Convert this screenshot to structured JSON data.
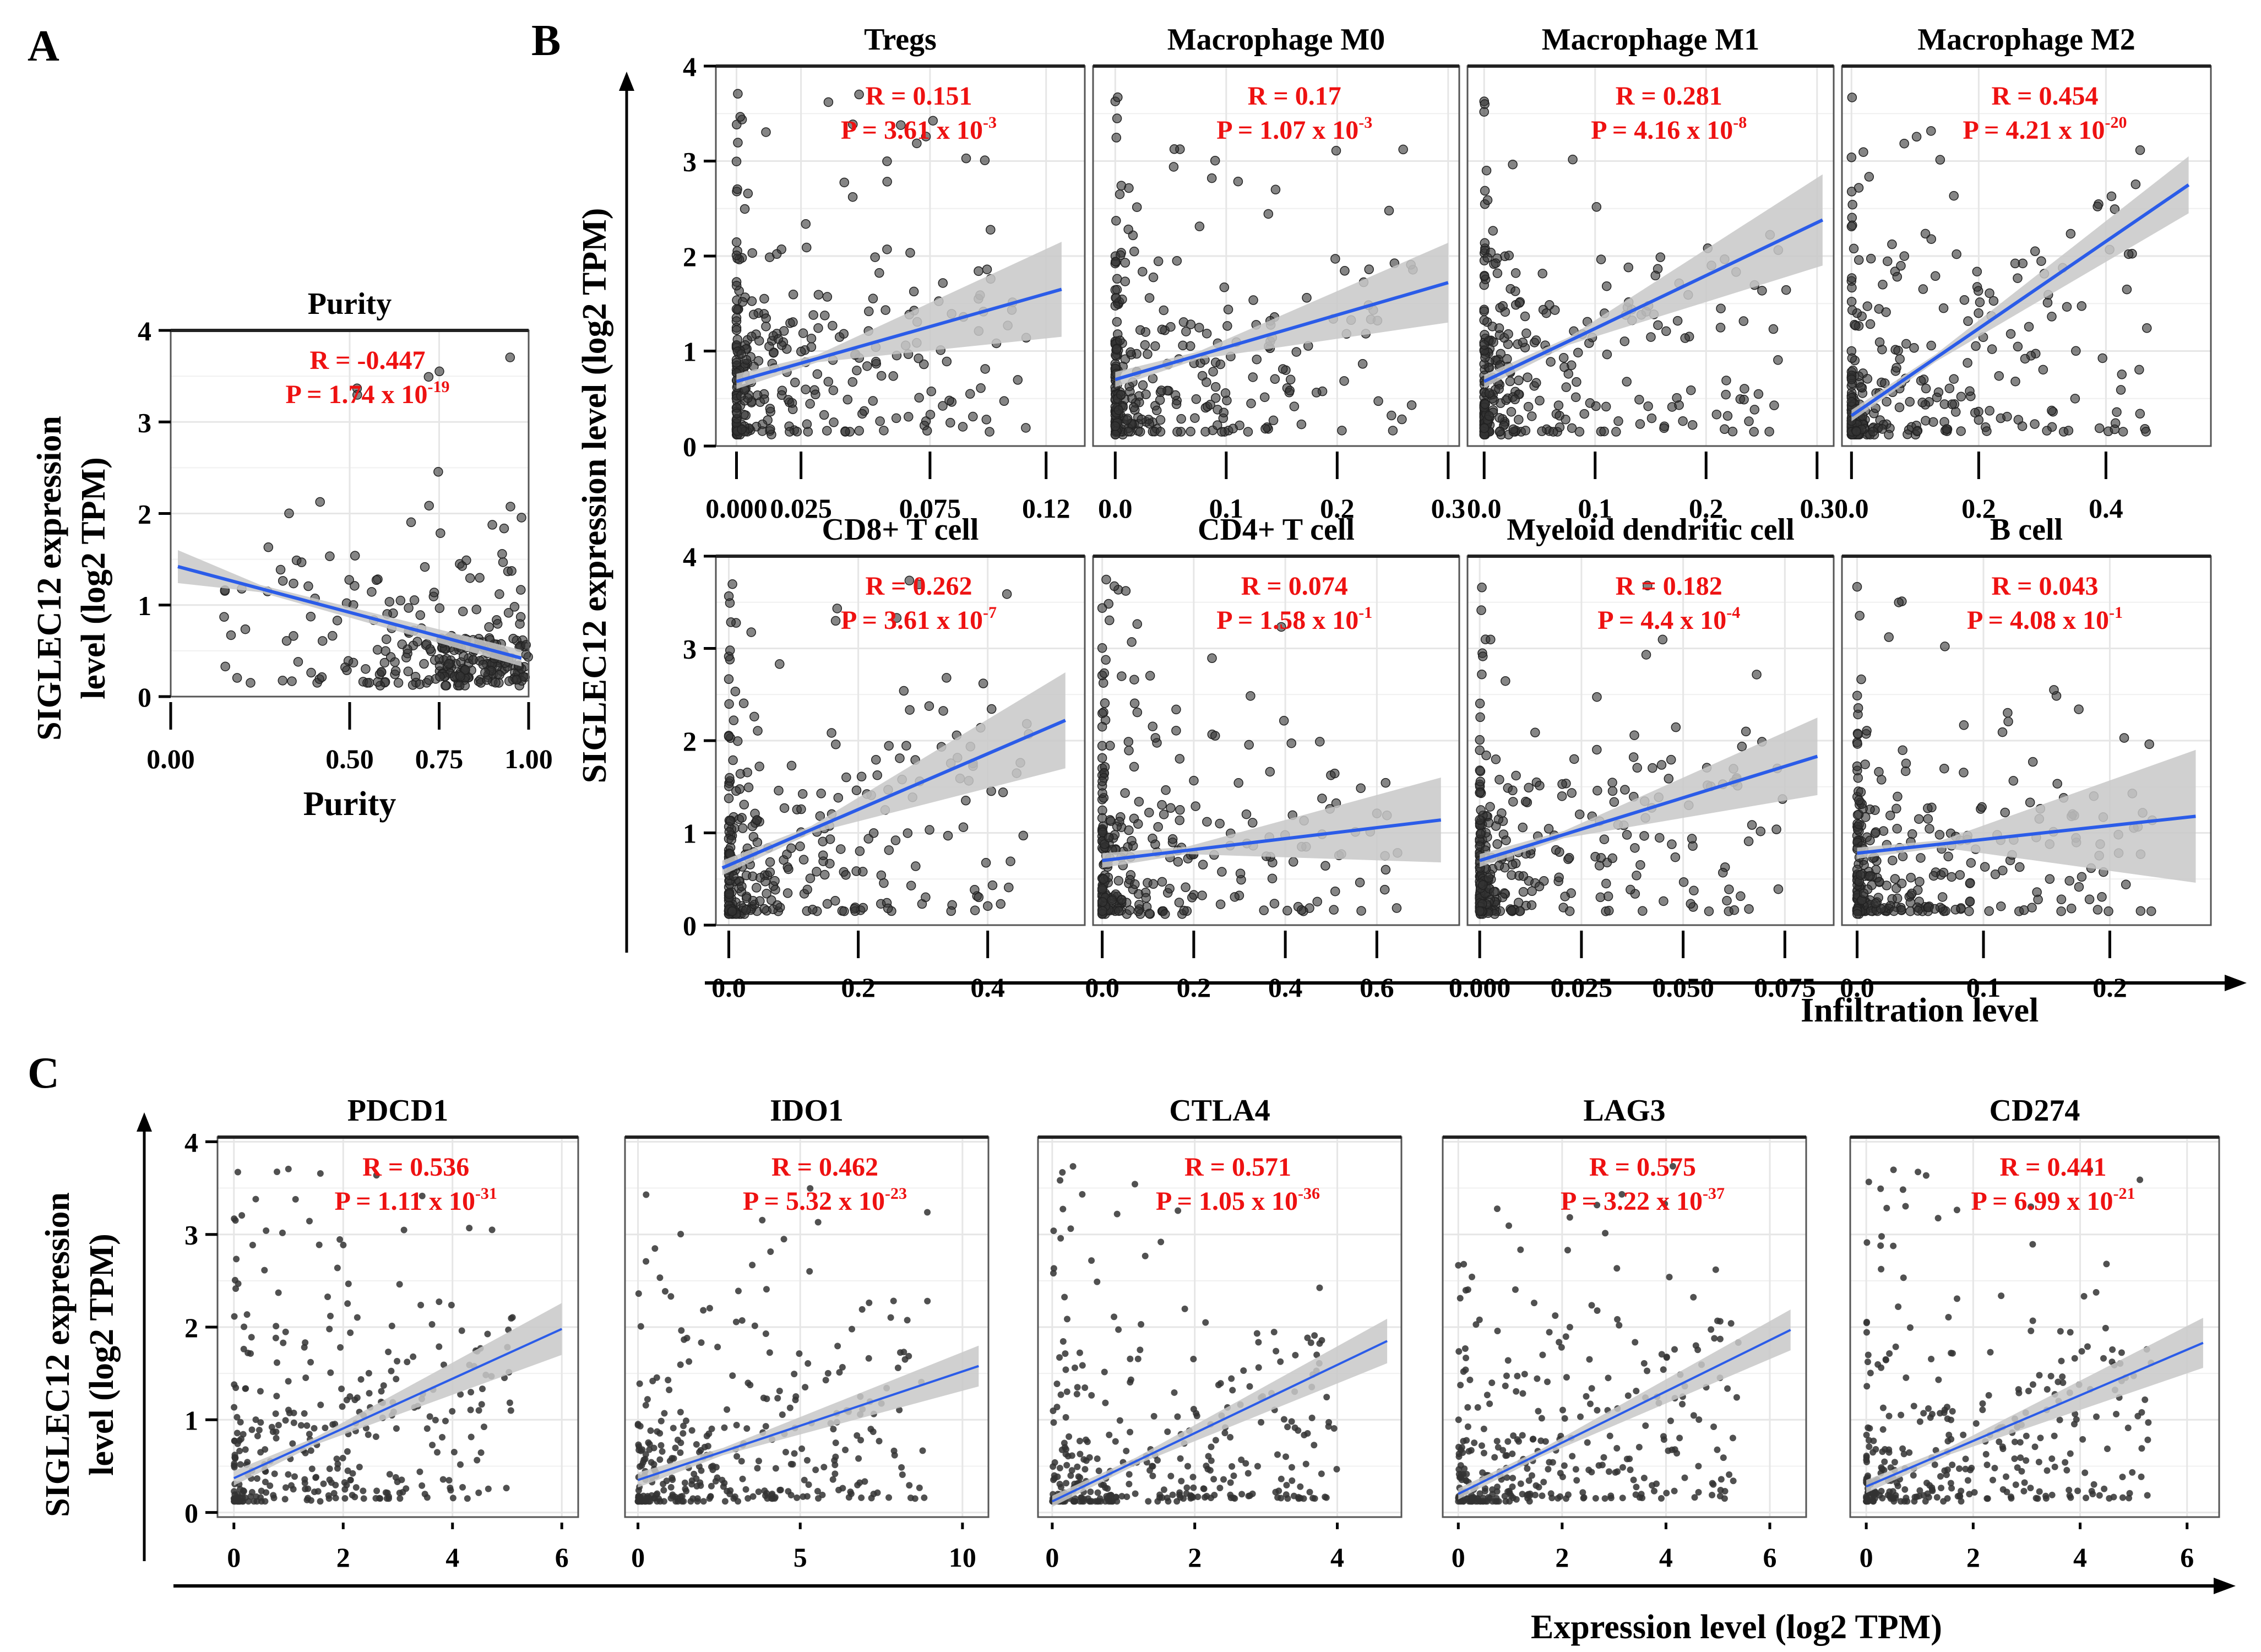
{
  "figure": {
    "panel_letters": [
      "A",
      "B",
      "C"
    ],
    "shared_ylabel": "SIGLEC12 expression level (log2 TPM)",
    "shared_ylabel_lines": [
      "SIGLEC12 expression",
      "level (log2 TPM)"
    ],
    "panel_b_xlabel": "Infiltration level",
    "panel_c_xlabel": "Expression level (log2 TPM)",
    "colors": {
      "points": "#333333",
      "fit_line": "#2b5ce8",
      "ci_band": "#c8c8c8",
      "stats_text": "#ee1111",
      "grid": "#e6e6e6"
    }
  },
  "chart_data": [
    {
      "panel": "A",
      "type": "scatter",
      "title": "Purity",
      "xlabel": "Purity",
      "ylabel": "SIGLEC12 expression level (log2 TPM)",
      "xlim": [
        0.0,
        1.0
      ],
      "ylim": [
        0,
        4
      ],
      "xticks": [
        {
          "v": 0.0,
          "label": "0.00"
        },
        {
          "v": 0.5,
          "label": "0.50"
        },
        {
          "v": 0.75,
          "label": "0.75"
        },
        {
          "v": 1.0,
          "label": "1.00"
        }
      ],
      "yticks": [
        0,
        1,
        2,
        3,
        4
      ],
      "stats": {
        "R": "R = -0.447",
        "P_base": "P = 1.74 x 10",
        "P_exp": "-19"
      },
      "fit": {
        "x0": 0.02,
        "y0": 1.42,
        "x1": 0.98,
        "y1": 0.42,
        "ci0": 0.18,
        "ci1": 0.09
      },
      "grid": true
    },
    {
      "panel": "B",
      "type": "scatter",
      "title": "Tregs",
      "xlim": [
        -0.008,
        0.135
      ],
      "ylim": [
        0,
        4
      ],
      "xticks": [
        {
          "v": 0.0,
          "label": "0.000"
        },
        {
          "v": 0.025,
          "label": "0.025"
        },
        {
          "v": 0.075,
          "label": "0.075"
        },
        {
          "v": 0.12,
          "label": "0.12"
        }
      ],
      "yticks": [
        0,
        1,
        2,
        3,
        4
      ],
      "show_yticks": true,
      "stats": {
        "R": "R = 0.151",
        "P_base": "P = 3.61 x 10",
        "P_exp": "-3"
      },
      "fit": {
        "x0": 0.0,
        "y0": 0.68,
        "x1": 0.126,
        "y1": 1.65,
        "ci0": 0.08,
        "ci1": 0.5
      },
      "grid": true
    },
    {
      "panel": "B",
      "type": "scatter",
      "title": "Macrophage M0",
      "xlim": [
        -0.02,
        0.31
      ],
      "ylim": [
        0,
        4
      ],
      "xticks": [
        {
          "v": 0.0,
          "label": "0.0"
        },
        {
          "v": 0.1,
          "label": "0.1"
        },
        {
          "v": 0.2,
          "label": "0.2"
        },
        {
          "v": 0.3,
          "label": "0.3"
        }
      ],
      "yticks": [
        0,
        1,
        2,
        3,
        4
      ],
      "show_yticks": false,
      "stats": {
        "R": "R = 0.17",
        "P_base": "P = 1.07 x 10",
        "P_exp": "-3"
      },
      "fit": {
        "x0": 0.0,
        "y0": 0.7,
        "x1": 0.3,
        "y1": 1.72,
        "ci0": 0.08,
        "ci1": 0.42
      },
      "grid": true
    },
    {
      "panel": "B",
      "type": "scatter",
      "title": "Macrophage M1",
      "xlim": [
        -0.015,
        0.315
      ],
      "ylim": [
        0,
        4
      ],
      "xticks": [
        {
          "v": 0.0,
          "label": "0.0"
        },
        {
          "v": 0.1,
          "label": "0.1"
        },
        {
          "v": 0.2,
          "label": "0.2"
        },
        {
          "v": 0.3,
          "label": "0.3"
        }
      ],
      "yticks": [
        0,
        1,
        2,
        3,
        4
      ],
      "show_yticks": false,
      "stats": {
        "R": "R = 0.281",
        "P_base": "P = 4.16 x 10",
        "P_exp": "-8"
      },
      "fit": {
        "x0": 0.0,
        "y0": 0.68,
        "x1": 0.305,
        "y1": 2.38,
        "ci0": 0.07,
        "ci1": 0.48
      },
      "grid": true
    },
    {
      "panel": "B",
      "type": "scatter",
      "title": "Macrophage M2",
      "xlim": [
        -0.015,
        0.565
      ],
      "ylim": [
        0,
        4
      ],
      "xticks": [
        {
          "v": 0.0,
          "label": "0.0"
        },
        {
          "v": 0.2,
          "label": "0.2"
        },
        {
          "v": 0.4,
          "label": "0.4"
        }
      ],
      "yticks": [
        0,
        1,
        2,
        3,
        4
      ],
      "show_yticks": false,
      "stats": {
        "R": "R = 0.454",
        "P_base": "P = 4.21 x 10",
        "P_exp": "-20"
      },
      "fit": {
        "x0": 0.0,
        "y0": 0.32,
        "x1": 0.53,
        "y1": 2.75,
        "ci0": 0.06,
        "ci1": 0.3
      },
      "grid": true
    },
    {
      "panel": "B",
      "type": "scatter",
      "title": "CD8+ T cell",
      "xlim": [
        -0.02,
        0.55
      ],
      "ylim": [
        0,
        4
      ],
      "xticks": [
        {
          "v": 0.0,
          "label": "0.0"
        },
        {
          "v": 0.2,
          "label": "0.2"
        },
        {
          "v": 0.4,
          "label": "0.4"
        }
      ],
      "yticks": [
        0,
        1,
        2,
        3,
        4
      ],
      "show_yticks": true,
      "stats": {
        "R": "R = 0.262",
        "P_base": "P = 3.61 x 10",
        "P_exp": "-7"
      },
      "fit": {
        "x0": -0.01,
        "y0": 0.62,
        "x1": 0.52,
        "y1": 2.22,
        "ci0": 0.08,
        "ci1": 0.52
      },
      "grid": true
    },
    {
      "panel": "B",
      "type": "scatter",
      "title": "CD4+ T cell",
      "xlim": [
        -0.02,
        0.78
      ],
      "ylim": [
        0,
        4
      ],
      "xticks": [
        {
          "v": 0.0,
          "label": "0.0"
        },
        {
          "v": 0.2,
          "label": "0.2"
        },
        {
          "v": 0.4,
          "label": "0.4"
        },
        {
          "v": 0.6,
          "label": "0.6"
        }
      ],
      "yticks": [
        0,
        1,
        2,
        3,
        4
      ],
      "show_yticks": false,
      "stats": {
        "R": "R = 0.074",
        "P_base": "P = 1.58 x 10",
        "P_exp": "-1"
      },
      "fit": {
        "x0": 0.0,
        "y0": 0.7,
        "x1": 0.74,
        "y1": 1.14,
        "ci0": 0.08,
        "ci1": 0.46
      },
      "grid": true
    },
    {
      "panel": "B",
      "type": "scatter",
      "title": "Myeloid dendritic cell",
      "xlim": [
        -0.003,
        0.087
      ],
      "ylim": [
        0,
        4
      ],
      "xticks": [
        {
          "v": 0.0,
          "label": "0.000"
        },
        {
          "v": 0.025,
          "label": "0.025"
        },
        {
          "v": 0.05,
          "label": "0.050"
        },
        {
          "v": 0.075,
          "label": "0.075"
        }
      ],
      "yticks": [
        0,
        1,
        2,
        3,
        4
      ],
      "show_yticks": false,
      "stats": {
        "R": "R = 0.182",
        "P_base": "P = 4.4 x 10",
        "P_exp": "-4"
      },
      "fit": {
        "x0": 0.0,
        "y0": 0.7,
        "x1": 0.083,
        "y1": 1.83,
        "ci0": 0.07,
        "ci1": 0.42
      },
      "grid": true
    },
    {
      "panel": "B",
      "type": "scatter",
      "title": "B cell",
      "xlim": [
        -0.012,
        0.28
      ],
      "ylim": [
        0,
        4
      ],
      "xticks": [
        {
          "v": 0.0,
          "label": "0.0"
        },
        {
          "v": 0.1,
          "label": "0.1"
        },
        {
          "v": 0.2,
          "label": "0.2"
        }
      ],
      "yticks": [
        0,
        1,
        2,
        3,
        4
      ],
      "show_yticks": false,
      "stats": {
        "R": "R = 0.043",
        "P_base": "P = 4.08 x 10",
        "P_exp": "-1"
      },
      "fit": {
        "x0": 0.0,
        "y0": 0.78,
        "x1": 0.268,
        "y1": 1.18,
        "ci0": 0.06,
        "ci1": 0.72
      },
      "grid": true
    },
    {
      "panel": "C",
      "type": "scatter",
      "title": "PDCD1",
      "xlim": [
        -0.3,
        6.3
      ],
      "ylim": [
        -0.05,
        4.05
      ],
      "xticks": [
        {
          "v": 0,
          "label": "0"
        },
        {
          "v": 2,
          "label": "2"
        },
        {
          "v": 4,
          "label": "4"
        },
        {
          "v": 6,
          "label": "6"
        }
      ],
      "yticks": [
        0,
        1,
        2,
        3,
        4
      ],
      "show_yticks": true,
      "stats": {
        "R": "R = 0.536",
        "P_base": "P = 1.11 x 10",
        "P_exp": "-31"
      },
      "fit": {
        "x0": 0.0,
        "y0": 0.37,
        "x1": 6.0,
        "y1": 1.98,
        "ci0": 0.08,
        "ci1": 0.28
      },
      "grid": true
    },
    {
      "panel": "C",
      "type": "scatter",
      "title": "IDO1",
      "xlim": [
        -0.4,
        10.8
      ],
      "ylim": [
        -0.05,
        4.05
      ],
      "xticks": [
        {
          "v": 0,
          "label": "0"
        },
        {
          "v": 5,
          "label": "5"
        },
        {
          "v": 10,
          "label": "10"
        }
      ],
      "yticks": [
        0,
        1,
        2,
        3,
        4
      ],
      "show_yticks": false,
      "stats": {
        "R": "R = 0.462",
        "P_base": "P = 5.32 x 10",
        "P_exp": "-23"
      },
      "fit": {
        "x0": 0.0,
        "y0": 0.35,
        "x1": 10.5,
        "y1": 1.58,
        "ci0": 0.08,
        "ci1": 0.22
      },
      "grid": true
    },
    {
      "panel": "C",
      "type": "scatter",
      "title": "CTLA4",
      "xlim": [
        -0.2,
        4.9
      ],
      "ylim": [
        -0.05,
        4.05
      ],
      "xticks": [
        {
          "v": 0,
          "label": "0"
        },
        {
          "v": 2,
          "label": "2"
        },
        {
          "v": 4,
          "label": "4"
        }
      ],
      "yticks": [
        0,
        1,
        2,
        3,
        4
      ],
      "show_yticks": false,
      "stats": {
        "R": "R = 0.571",
        "P_base": "P = 1.05 x 10",
        "P_exp": "-36"
      },
      "fit": {
        "x0": 0.0,
        "y0": 0.12,
        "x1": 4.7,
        "y1": 1.85,
        "ci0": 0.06,
        "ci1": 0.24
      },
      "grid": true
    },
    {
      "panel": "C",
      "type": "scatter",
      "title": "LAG3",
      "xlim": [
        -0.3,
        6.7
      ],
      "ylim": [
        -0.05,
        4.05
      ],
      "xticks": [
        {
          "v": 0,
          "label": "0"
        },
        {
          "v": 2,
          "label": "2"
        },
        {
          "v": 4,
          "label": "4"
        },
        {
          "v": 6,
          "label": "6"
        }
      ],
      "yticks": [
        0,
        1,
        2,
        3,
        4
      ],
      "show_yticks": false,
      "stats": {
        "R": "R = 0.575",
        "P_base": "P = 3.22 x 10",
        "P_exp": "-37"
      },
      "fit": {
        "x0": 0.0,
        "y0": 0.2,
        "x1": 6.4,
        "y1": 1.97,
        "ci0": 0.06,
        "ci1": 0.22
      },
      "grid": true
    },
    {
      "panel": "C",
      "type": "scatter",
      "title": "CD274",
      "xlim": [
        -0.3,
        6.6
      ],
      "ylim": [
        -0.05,
        4.05
      ],
      "xticks": [
        {
          "v": 0,
          "label": "0"
        },
        {
          "v": 2,
          "label": "2"
        },
        {
          "v": 4,
          "label": "4"
        },
        {
          "v": 6,
          "label": "6"
        }
      ],
      "yticks": [
        0,
        1,
        2,
        3,
        4
      ],
      "show_yticks": false,
      "stats": {
        "R": "R = 0.441",
        "P_base": "P = 6.99 x 10",
        "P_exp": "-21"
      },
      "fit": {
        "x0": 0.0,
        "y0": 0.28,
        "x1": 6.3,
        "y1": 1.83,
        "ci0": 0.07,
        "ci1": 0.27
      },
      "grid": true
    }
  ]
}
